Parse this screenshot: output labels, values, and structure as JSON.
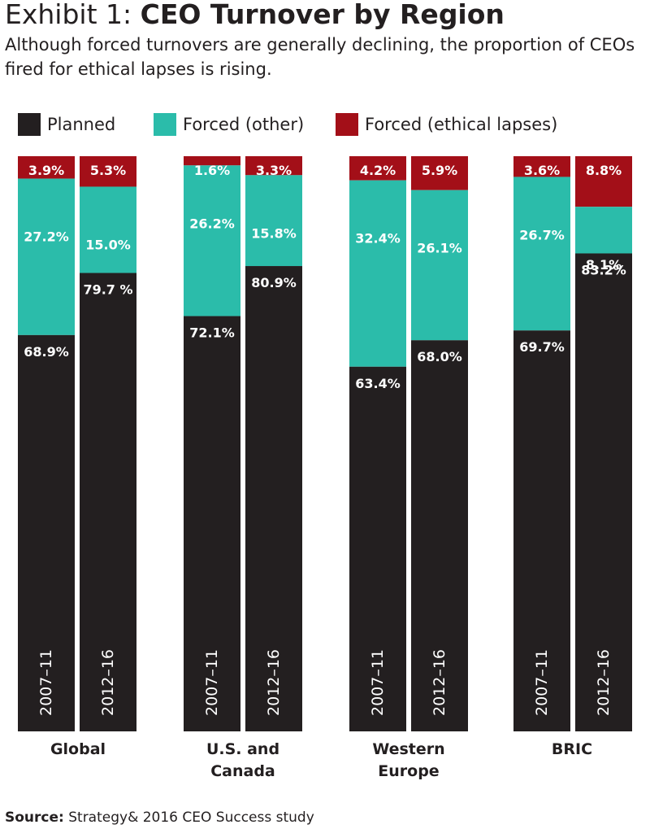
{
  "title": {
    "lead": "Exhibit 1:",
    "main": "CEO Turnover by Region"
  },
  "subtitle": "Although forced turnovers are generally declining, the proportion of CEOs fired for ethical lapses is rising.",
  "legend": {
    "items": [
      {
        "label": "Planned",
        "color": "#231f20"
      },
      {
        "label": "Forced (other)",
        "color": "#2bbcaa"
      },
      {
        "label": "Forced (ethical lapses)",
        "color": "#a30f18"
      }
    ]
  },
  "chart_data": {
    "type": "bar",
    "stacked": true,
    "orientation": "vertical",
    "ylim": [
      0,
      100
    ],
    "grid": false,
    "legend_placement": "top",
    "series_order": [
      "planned",
      "forced_other",
      "forced_ethical"
    ],
    "groups": [
      {
        "label": "Global",
        "bars": [
          {
            "period": "2007–11",
            "planned": 68.9,
            "forced_other": 27.2,
            "forced_ethical": 3.9,
            "labels": {
              "planned": "68.9%",
              "forced_other": "27.2%",
              "forced_ethical": "3.9%"
            }
          },
          {
            "period": "2012–16",
            "planned": 79.7,
            "forced_other": 15.0,
            "forced_ethical": 5.3,
            "labels": {
              "planned": "79.7 %",
              "forced_other": "15.0%",
              "forced_ethical": "5.3%"
            }
          }
        ]
      },
      {
        "label": "U.S. and Canada",
        "bars": [
          {
            "period": "2007–11",
            "planned": 72.1,
            "forced_other": 26.2,
            "forced_ethical": 1.6,
            "labels": {
              "planned": "72.1%",
              "forced_other": "26.2%",
              "forced_ethical": "1.6%"
            }
          },
          {
            "period": "2012–16",
            "planned": 80.9,
            "forced_other": 15.8,
            "forced_ethical": 3.3,
            "labels": {
              "planned": "80.9%",
              "forced_other": "15.8%",
              "forced_ethical": "3.3%"
            }
          }
        ]
      },
      {
        "label": "Western Europe",
        "bars": [
          {
            "period": "2007–11",
            "planned": 63.4,
            "forced_other": 32.4,
            "forced_ethical": 4.2,
            "labels": {
              "planned": "63.4%",
              "forced_other": "32.4%",
              "forced_ethical": "4.2%"
            }
          },
          {
            "period": "2012–16",
            "planned": 68.0,
            "forced_other": 26.1,
            "forced_ethical": 5.9,
            "labels": {
              "planned": "68.0%",
              "forced_other": "26.1%",
              "forced_ethical": "5.9%"
            }
          }
        ]
      },
      {
        "label": "BRIC",
        "bars": [
          {
            "period": "2007–11",
            "planned": 69.7,
            "forced_other": 26.7,
            "forced_ethical": 3.6,
            "labels": {
              "planned": "69.7%",
              "forced_other": "26.7%",
              "forced_ethical": "3.6%"
            }
          },
          {
            "period": "2012–16",
            "planned": 83.2,
            "forced_other": 8.1,
            "forced_ethical": 8.8,
            "labels": {
              "planned": "83.2%",
              "forced_other": "8.1%",
              "forced_ethical": "8.8%"
            }
          }
        ]
      }
    ]
  },
  "colors": {
    "planned": "#231f20",
    "forced_other": "#2bbcaa",
    "forced_ethical": "#a30f18",
    "bar_label": "#ffffff",
    "group_label": "#231f20"
  },
  "source": {
    "label": "Source:",
    "text": "Strategy& 2016 CEO Success study"
  }
}
